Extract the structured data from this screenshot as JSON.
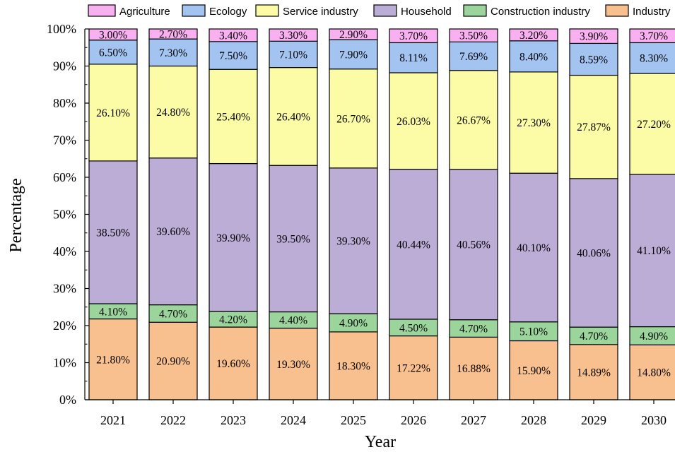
{
  "chart_data": {
    "type": "bar",
    "stacked": true,
    "xlabel": "Year",
    "ylabel": "Percentage",
    "ylim": [
      0,
      100
    ],
    "yticks": [
      "0%",
      "10%",
      "20%",
      "30%",
      "40%",
      "50%",
      "60%",
      "70%",
      "80%",
      "90%",
      "100%"
    ],
    "categories": [
      "2021",
      "2022",
      "2023",
      "2024",
      "2025",
      "2026",
      "2027",
      "2028",
      "2029",
      "2030"
    ],
    "legend_position": "top",
    "legend_order": [
      "Agriculture",
      "Ecology",
      "Service industry",
      "Household",
      "Construction industry",
      "Industry"
    ],
    "series": [
      {
        "name": "Industry",
        "color": "#F9C08F",
        "values": [
          21.8,
          20.9,
          19.6,
          19.3,
          18.3,
          17.22,
          16.88,
          15.9,
          14.89,
          14.8
        ],
        "labels": [
          "21.80%",
          "20.90%",
          "19.60%",
          "19.30%",
          "18.30%",
          "17.22%",
          "16.88%",
          "15.90%",
          "14.89%",
          "14.80%"
        ]
      },
      {
        "name": "Construction industry",
        "color": "#9BD59B",
        "values": [
          4.1,
          4.7,
          4.2,
          4.4,
          4.9,
          4.5,
          4.7,
          5.1,
          4.7,
          4.9
        ],
        "labels": [
          "4.10%",
          "4.70%",
          "4.20%",
          "4.40%",
          "4.90%",
          "4.50%",
          "4.70%",
          "5.10%",
          "4.70%",
          "4.90%"
        ]
      },
      {
        "name": "Household",
        "color": "#BCADD6",
        "values": [
          38.5,
          39.6,
          39.9,
          39.5,
          39.3,
          40.44,
          40.56,
          40.1,
          40.06,
          41.1
        ],
        "labels": [
          "38.50%",
          "39.60%",
          "39.90%",
          "39.50%",
          "39.30%",
          "40.44%",
          "40.56%",
          "40.10%",
          "40.06%",
          "41.10%"
        ]
      },
      {
        "name": "Service industry",
        "color": "#FCFCA6",
        "values": [
          26.1,
          24.8,
          25.4,
          26.4,
          26.7,
          26.03,
          26.67,
          27.3,
          27.87,
          27.2
        ],
        "labels": [
          "26.10%",
          "24.80%",
          "25.40%",
          "26.40%",
          "26.70%",
          "26.03%",
          "26.67%",
          "27.30%",
          "27.87%",
          "27.20%"
        ]
      },
      {
        "name": "Ecology",
        "color": "#A3C3F0",
        "values": [
          6.5,
          7.3,
          7.5,
          7.1,
          7.9,
          8.11,
          7.69,
          8.4,
          8.59,
          8.3
        ],
        "labels": [
          "6.50%",
          "7.30%",
          "7.50%",
          "7.10%",
          "7.90%",
          "8.11%",
          "7.69%",
          "8.40%",
          "8.59%",
          "8.30%"
        ]
      },
      {
        "name": "Agriculture",
        "color": "#F9B0F0",
        "values": [
          3.0,
          2.7,
          3.4,
          3.3,
          2.9,
          3.7,
          3.5,
          3.2,
          3.9,
          3.7
        ],
        "labels": [
          "3.00%",
          "2.70%",
          "3.40%",
          "3.30%",
          "2.90%",
          "3.70%",
          "3.50%",
          "3.20%",
          "3.90%",
          "3.70%"
        ]
      }
    ]
  }
}
